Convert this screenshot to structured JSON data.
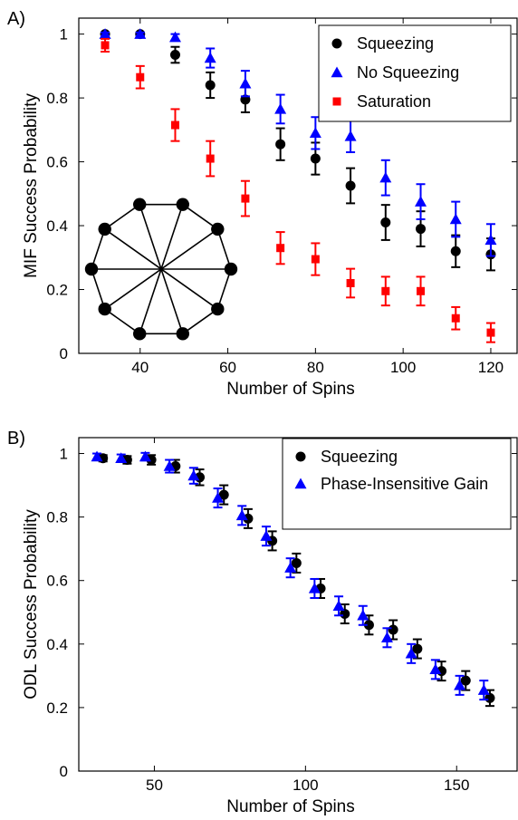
{
  "chart_data": [
    {
      "type": "scatter",
      "panel_label": "A)",
      "xlabel": "Number of Spins",
      "ylabel": "MIF Success Probability",
      "xlim": [
        26,
        126
      ],
      "ylim": [
        0,
        1.05
      ],
      "xticks": [
        40,
        60,
        80,
        100,
        120
      ],
      "yticks": [
        0,
        0.2,
        0.4,
        0.6,
        0.8,
        1
      ],
      "grid": false,
      "legend_position": "top-right",
      "inset": "ring-graph-10-nodes-with-diagonals",
      "series": [
        {
          "name": "Squeezing",
          "marker": "circle",
          "color": "#000000",
          "points": [
            {
              "x": 32,
              "y": 1.0,
              "err": 0.005
            },
            {
              "x": 40,
              "y": 1.0,
              "err": 0.005
            },
            {
              "x": 48,
              "y": 0.935,
              "err": 0.025
            },
            {
              "x": 56,
              "y": 0.84,
              "err": 0.04
            },
            {
              "x": 64,
              "y": 0.795,
              "err": 0.04
            },
            {
              "x": 72,
              "y": 0.655,
              "err": 0.05
            },
            {
              "x": 80,
              "y": 0.61,
              "err": 0.05
            },
            {
              "x": 88,
              "y": 0.525,
              "err": 0.055
            },
            {
              "x": 96,
              "y": 0.41,
              "err": 0.055
            },
            {
              "x": 104,
              "y": 0.39,
              "err": 0.055
            },
            {
              "x": 112,
              "y": 0.32,
              "err": 0.05
            },
            {
              "x": 120,
              "y": 0.31,
              "err": 0.05
            }
          ]
        },
        {
          "name": "No Squeezing",
          "marker": "triangle",
          "color": "#0000ff",
          "points": [
            {
              "x": 32,
              "y": 1.0,
              "err": 0.005
            },
            {
              "x": 40,
              "y": 1.0,
              "err": 0.005
            },
            {
              "x": 48,
              "y": 0.99,
              "err": 0.01
            },
            {
              "x": 56,
              "y": 0.925,
              "err": 0.03
            },
            {
              "x": 64,
              "y": 0.845,
              "err": 0.04
            },
            {
              "x": 72,
              "y": 0.765,
              "err": 0.045
            },
            {
              "x": 80,
              "y": 0.69,
              "err": 0.05
            },
            {
              "x": 88,
              "y": 0.68,
              "err": 0.05
            },
            {
              "x": 96,
              "y": 0.55,
              "err": 0.055
            },
            {
              "x": 104,
              "y": 0.475,
              "err": 0.055
            },
            {
              "x": 112,
              "y": 0.42,
              "err": 0.055
            },
            {
              "x": 120,
              "y": 0.355,
              "err": 0.05
            }
          ]
        },
        {
          "name": "Saturation",
          "marker": "square",
          "color": "#ff0000",
          "points": [
            {
              "x": 32,
              "y": 0.965,
              "err": 0.02
            },
            {
              "x": 40,
              "y": 0.865,
              "err": 0.035
            },
            {
              "x": 48,
              "y": 0.715,
              "err": 0.05
            },
            {
              "x": 56,
              "y": 0.61,
              "err": 0.055
            },
            {
              "x": 64,
              "y": 0.485,
              "err": 0.055
            },
            {
              "x": 72,
              "y": 0.33,
              "err": 0.05
            },
            {
              "x": 80,
              "y": 0.295,
              "err": 0.05
            },
            {
              "x": 88,
              "y": 0.22,
              "err": 0.045
            },
            {
              "x": 96,
              "y": 0.195,
              "err": 0.045
            },
            {
              "x": 104,
              "y": 0.195,
              "err": 0.045
            },
            {
              "x": 112,
              "y": 0.11,
              "err": 0.035
            },
            {
              "x": 120,
              "y": 0.065,
              "err": 0.03
            }
          ]
        }
      ]
    },
    {
      "type": "scatter",
      "panel_label": "B)",
      "xlabel": "Number of Spins",
      "ylabel": "ODL Success Probability",
      "xlim": [
        25,
        170
      ],
      "ylim": [
        0,
        1.05
      ],
      "xticks": [
        50,
        100,
        150
      ],
      "yticks": [
        0,
        0.2,
        0.4,
        0.6,
        0.8,
        1
      ],
      "grid": false,
      "legend_position": "top-right",
      "series": [
        {
          "name": "Squeezing",
          "marker": "circle",
          "color": "#000000",
          "points": [
            {
              "x": 33,
              "y": 0.985,
              "err": 0.01
            },
            {
              "x": 41,
              "y": 0.98,
              "err": 0.012
            },
            {
              "x": 49,
              "y": 0.98,
              "err": 0.015
            },
            {
              "x": 57,
              "y": 0.96,
              "err": 0.02
            },
            {
              "x": 65,
              "y": 0.925,
              "err": 0.025
            },
            {
              "x": 73,
              "y": 0.87,
              "err": 0.03
            },
            {
              "x": 81,
              "y": 0.795,
              "err": 0.03
            },
            {
              "x": 89,
              "y": 0.725,
              "err": 0.03
            },
            {
              "x": 97,
              "y": 0.655,
              "err": 0.03
            },
            {
              "x": 105,
              "y": 0.575,
              "err": 0.03
            },
            {
              "x": 113,
              "y": 0.495,
              "err": 0.03
            },
            {
              "x": 121,
              "y": 0.46,
              "err": 0.03
            },
            {
              "x": 129,
              "y": 0.445,
              "err": 0.03
            },
            {
              "x": 137,
              "y": 0.385,
              "err": 0.03
            },
            {
              "x": 145,
              "y": 0.315,
              "err": 0.03
            },
            {
              "x": 153,
              "y": 0.285,
              "err": 0.03
            },
            {
              "x": 161,
              "y": 0.23,
              "err": 0.025
            }
          ]
        },
        {
          "name": "Phase-Insensitive Gain",
          "marker": "triangle",
          "color": "#0000ff",
          "points": [
            {
              "x": 31,
              "y": 0.99,
              "err": 0.01
            },
            {
              "x": 39,
              "y": 0.985,
              "err": 0.012
            },
            {
              "x": 47,
              "y": 0.99,
              "err": 0.012
            },
            {
              "x": 55,
              "y": 0.96,
              "err": 0.02
            },
            {
              "x": 63,
              "y": 0.93,
              "err": 0.025
            },
            {
              "x": 71,
              "y": 0.86,
              "err": 0.03
            },
            {
              "x": 79,
              "y": 0.805,
              "err": 0.03
            },
            {
              "x": 87,
              "y": 0.74,
              "err": 0.03
            },
            {
              "x": 95,
              "y": 0.64,
              "err": 0.03
            },
            {
              "x": 103,
              "y": 0.575,
              "err": 0.03
            },
            {
              "x": 111,
              "y": 0.52,
              "err": 0.03
            },
            {
              "x": 119,
              "y": 0.49,
              "err": 0.03
            },
            {
              "x": 127,
              "y": 0.42,
              "err": 0.03
            },
            {
              "x": 135,
              "y": 0.37,
              "err": 0.03
            },
            {
              "x": 143,
              "y": 0.32,
              "err": 0.03
            },
            {
              "x": 151,
              "y": 0.27,
              "err": 0.03
            },
            {
              "x": 159,
              "y": 0.255,
              "err": 0.03
            }
          ]
        }
      ]
    }
  ]
}
